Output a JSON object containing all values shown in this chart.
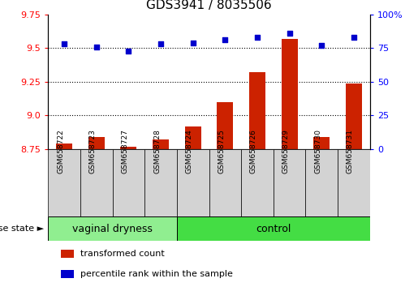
{
  "title": "GDS3941 / 8035506",
  "samples": [
    "GSM658722",
    "GSM658723",
    "GSM658727",
    "GSM658728",
    "GSM658724",
    "GSM658725",
    "GSM658726",
    "GSM658729",
    "GSM658730",
    "GSM658731"
  ],
  "transformed_count": [
    8.79,
    8.84,
    8.77,
    8.82,
    8.92,
    9.1,
    9.32,
    9.57,
    8.84,
    9.24
  ],
  "percentile_rank": [
    78,
    76,
    73,
    78,
    79,
    81,
    83,
    86,
    77,
    83
  ],
  "group_defs": [
    {
      "label": "vaginal dryness",
      "start": 0,
      "end": 3,
      "color": "#90ee90"
    },
    {
      "label": "control",
      "start": 4,
      "end": 9,
      "color": "#44dd44"
    }
  ],
  "bar_color": "#cc2200",
  "dot_color": "#0000cc",
  "left_ylim": [
    8.75,
    9.75
  ],
  "right_ylim": [
    0,
    100
  ],
  "left_yticks": [
    8.75,
    9.0,
    9.25,
    9.5,
    9.75
  ],
  "right_yticks": [
    0,
    25,
    50,
    75,
    100
  ],
  "right_yticklabels": [
    "0",
    "25",
    "50",
    "75",
    "100%"
  ],
  "dotted_lines": [
    9.5,
    9.25,
    9.0
  ],
  "bar_width": 0.5,
  "legend_items": [
    "transformed count",
    "percentile rank within the sample"
  ],
  "legend_colors": [
    "#cc2200",
    "#0000cc"
  ],
  "disease_state_label": "disease state",
  "title_fontsize": 11,
  "tick_fontsize": 8,
  "sample_bg_color": "#d3d3d3",
  "sample_label_fontsize": 6.5,
  "group_label_fontsize": 9,
  "legend_fontsize": 8
}
